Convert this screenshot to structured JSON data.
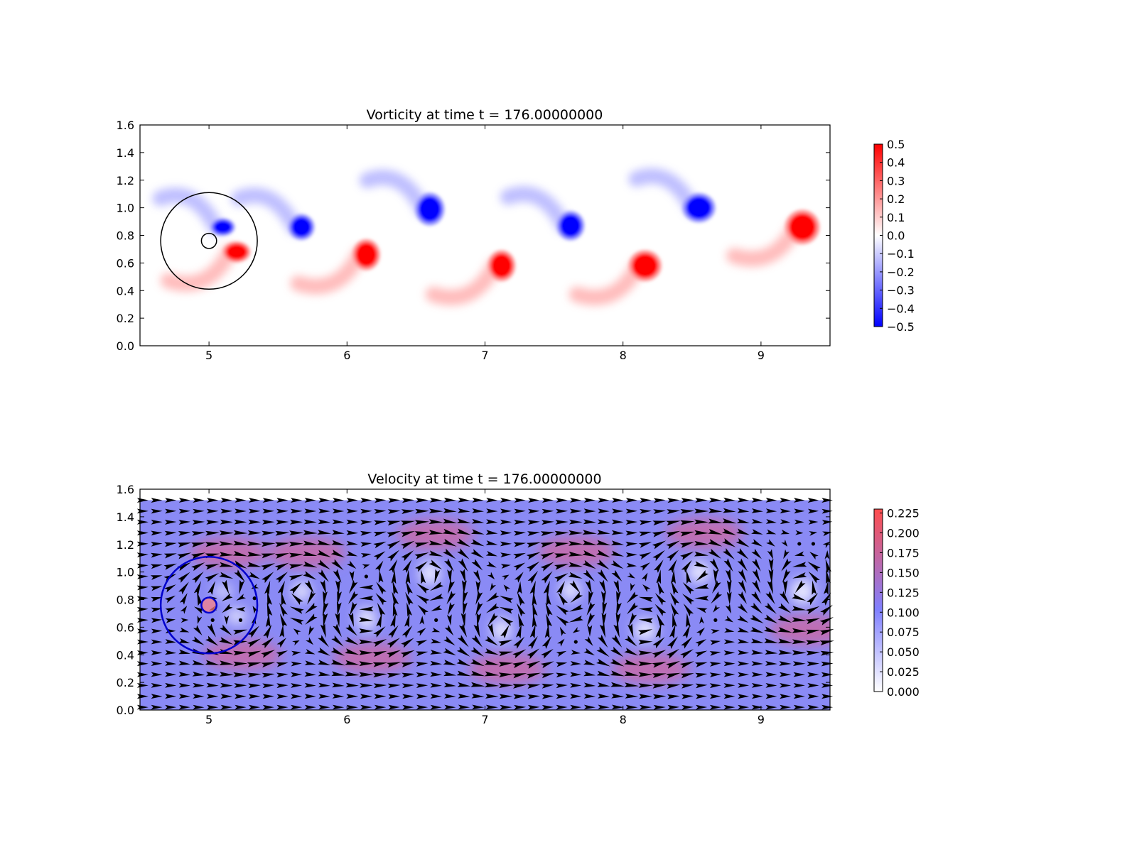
{
  "chart_data": [
    {
      "type": "heatmap",
      "title": "Vorticity at time t =   176.00000000",
      "xlabel": "",
      "ylabel": "",
      "xlim": [
        4.5,
        9.5
      ],
      "ylim": [
        0.0,
        1.6
      ],
      "x_ticks": [
        "5",
        "6",
        "7",
        "8",
        "9"
      ],
      "y_ticks": [
        "0.0",
        "0.2",
        "0.4",
        "0.6",
        "0.8",
        "1.0",
        "1.2",
        "1.4",
        "1.6"
      ],
      "colorbar": {
        "min": -0.5,
        "max": 0.5,
        "ticks": [
          "0.5",
          "0.4",
          "0.3",
          "0.2",
          "0.1",
          "0.0",
          "−0.1",
          "−0.2",
          "−0.3",
          "−0.4",
          "−0.5"
        ],
        "colors": {
          "low": "#0000ff",
          "mid": "#ffffff",
          "high": "#ff0000"
        }
      },
      "vortices": [
        {
          "x": 5.2,
          "y": 0.68,
          "rx": 0.16,
          "ry": 0.12,
          "sign": 1
        },
        {
          "x": 5.1,
          "y": 0.86,
          "rx": 0.14,
          "ry": 0.1,
          "sign": -1
        },
        {
          "x": 5.67,
          "y": 0.86,
          "rx": 0.15,
          "ry": 0.15,
          "sign": -1
        },
        {
          "x": 6.14,
          "y": 0.66,
          "rx": 0.16,
          "ry": 0.18,
          "sign": 1
        },
        {
          "x": 6.6,
          "y": 0.99,
          "rx": 0.17,
          "ry": 0.19,
          "sign": -1
        },
        {
          "x": 7.12,
          "y": 0.58,
          "rx": 0.16,
          "ry": 0.18,
          "sign": 1
        },
        {
          "x": 7.62,
          "y": 0.87,
          "rx": 0.16,
          "ry": 0.17,
          "sign": -1
        },
        {
          "x": 8.16,
          "y": 0.58,
          "rx": 0.19,
          "ry": 0.18,
          "sign": 1
        },
        {
          "x": 8.55,
          "y": 1.0,
          "rx": 0.19,
          "ry": 0.17,
          "sign": -1
        },
        {
          "x": 9.3,
          "y": 0.86,
          "rx": 0.2,
          "ry": 0.2,
          "sign": 1
        }
      ],
      "cylinder": {
        "x": 5.0,
        "y": 0.76,
        "radius": 0.055
      },
      "circle": {
        "x": 5.0,
        "y": 0.76,
        "radius": 0.35
      }
    },
    {
      "type": "heatmap",
      "title": "Velocity at time t =   176.00000000",
      "xlabel": "",
      "ylabel": "",
      "xlim": [
        4.5,
        9.5
      ],
      "ylim": [
        0.0,
        1.6
      ],
      "x_ticks": [
        "5",
        "6",
        "7",
        "8",
        "9"
      ],
      "y_ticks": [
        "0.0",
        "0.2",
        "0.4",
        "0.6",
        "0.8",
        "1.0",
        "1.2",
        "1.4",
        "1.6"
      ],
      "field_top": 1.52,
      "colorbar": {
        "min": 0.0,
        "max": 0.23,
        "ticks": [
          "0.225",
          "0.200",
          "0.175",
          "0.150",
          "0.125",
          "0.100",
          "0.075",
          "0.050",
          "0.025",
          "0.000"
        ],
        "colors": {
          "low": "#ffffff",
          "mid": "#8080ff",
          "high": "#ff4d4d"
        }
      },
      "vector_grid": {
        "nx": 50,
        "ny": 20
      },
      "cylinder": {
        "x": 5.0,
        "y": 0.76,
        "radius": 0.055
      },
      "circle": {
        "x": 5.0,
        "y": 0.76,
        "radius": 0.35
      }
    }
  ]
}
